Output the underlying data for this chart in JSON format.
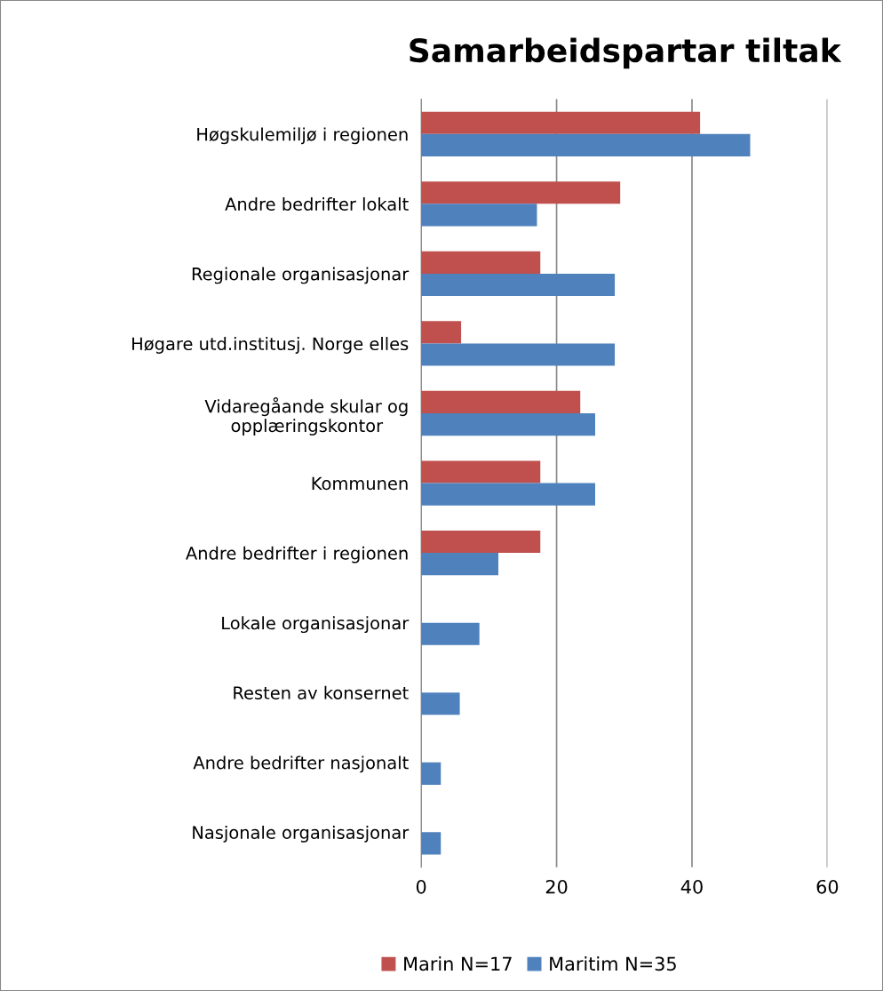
{
  "chart_data": {
    "type": "bar",
    "orientation": "horizontal",
    "title": "Samarbeidspartar tiltak",
    "categories": [
      "Høgskulemiljø i regionen",
      "Andre bedrifter lokalt",
      "Regionale organisasjonar",
      "Høgare utd.institusj. Norge elles",
      "Vidaregåande skular og\nopplæringskontor",
      "Kommunen",
      "Andre bedrifter i regionen",
      "Lokale organisasjonar",
      "Resten av konsernet",
      "Andre bedrifter nasjonalt",
      "Nasjonale organisasjonar"
    ],
    "series": [
      {
        "name": "Marin N=17",
        "color": "#c0504d",
        "values": [
          41.2,
          29.4,
          17.6,
          5.9,
          23.5,
          17.6,
          17.6,
          0,
          0,
          0,
          0
        ]
      },
      {
        "name": "Maritim N=35",
        "color": "#4f81bd",
        "values": [
          48.6,
          17.1,
          28.6,
          28.6,
          25.7,
          25.7,
          11.4,
          8.6,
          5.7,
          2.9,
          2.9
        ]
      }
    ],
    "xlim": [
      0,
      60
    ],
    "xticks": [
      0,
      20,
      40,
      60
    ],
    "grid": "x",
    "legend": "bottom"
  }
}
